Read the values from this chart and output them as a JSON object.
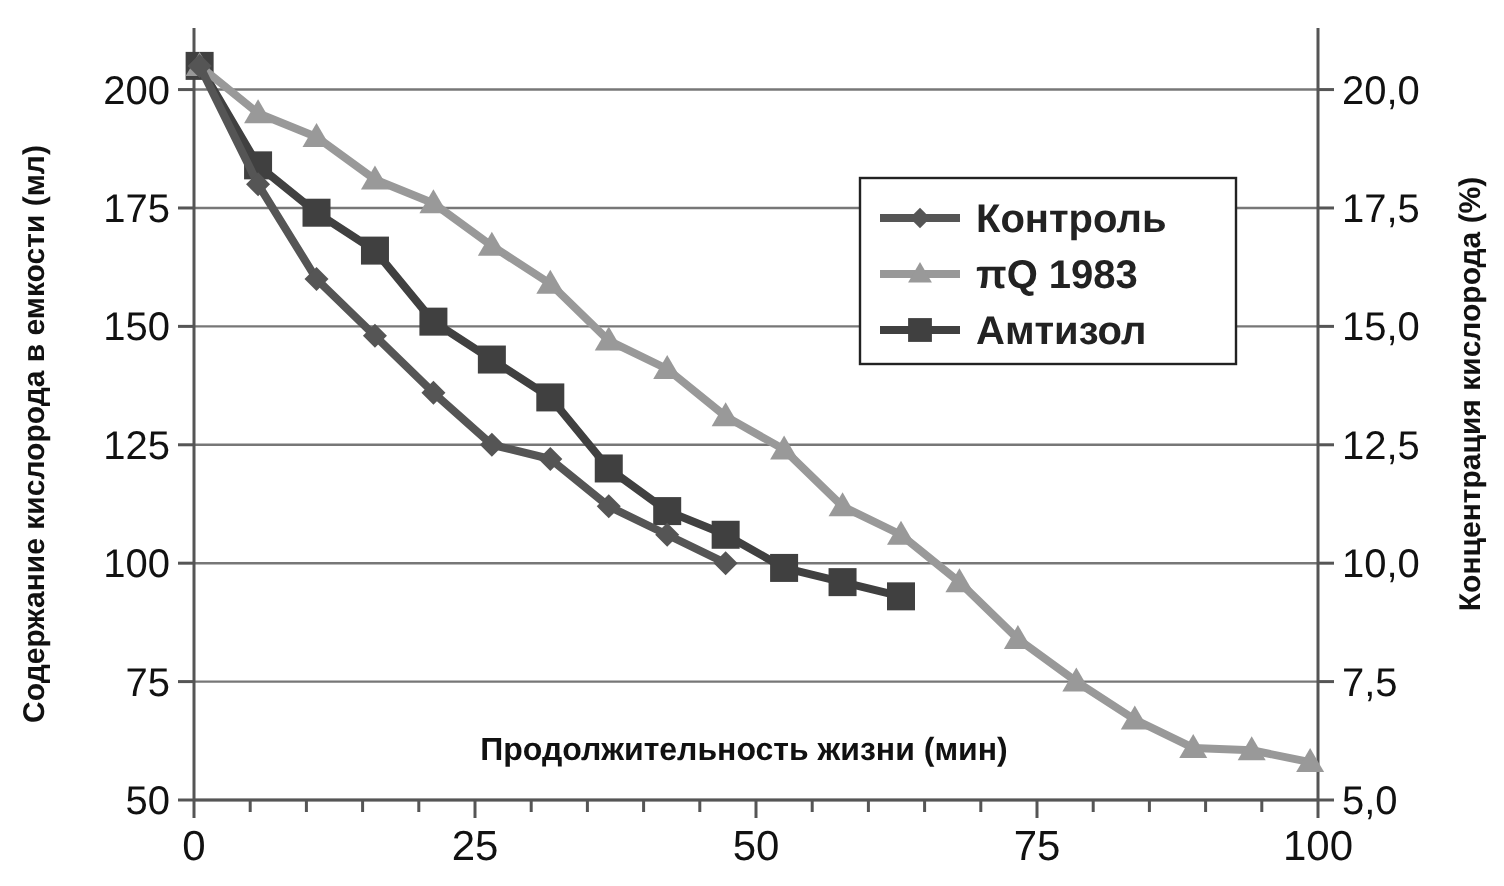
{
  "chart_data": {
    "type": "line",
    "xlabel": "Продолжительность жизни (мин)",
    "ylabel": "Содержание кислорода в емкости (мл)",
    "y2label": "Концентрация кислорода (%)",
    "xlim": [
      0,
      100
    ],
    "xticks": [
      0,
      {
        "value": 5,
        "label": null
      },
      {
        "value": 10,
        "label": null
      },
      {
        "value": 15,
        "label": null
      },
      {
        "value": 20,
        "label": null
      },
      25,
      {
        "value": 30,
        "label": null
      },
      {
        "value": 35,
        "label": null
      },
      {
        "value": 40,
        "label": null
      },
      {
        "value": 45,
        "label": null
      },
      50,
      {
        "value": 55,
        "label": null
      },
      {
        "value": 60,
        "label": null
      },
      {
        "value": 65,
        "label": null
      },
      {
        "value": 70,
        "label": null
      },
      75,
      {
        "value": 80,
        "label": null
      },
      {
        "value": 85,
        "label": null
      },
      {
        "value": 90,
        "label": null
      },
      {
        "value": 95,
        "label": null
      },
      100
    ],
    "ylim": [
      50,
      213
    ],
    "yticks": [
      50,
      75,
      100,
      125,
      150,
      175,
      200
    ],
    "y2lim": [
      5,
      21.3
    ],
    "y2ticks": [
      {
        "value": 5,
        "label": "5,0"
      },
      {
        "value": 7.5,
        "label": "7,5"
      },
      {
        "value": 10,
        "label": "10,0"
      },
      {
        "value": 12.5,
        "label": "12,5"
      },
      {
        "value": 15,
        "label": "15,0"
      },
      {
        "value": 17.5,
        "label": "17,5"
      },
      {
        "value": 20,
        "label": "20,0"
      }
    ],
    "grid": "y",
    "legend": "top right",
    "series": [
      {
        "name": "Контроль",
        "color": "#555555",
        "marker": "diamond",
        "x": [
          0.5,
          5.7,
          10.9,
          16.1,
          21.3,
          26.5,
          31.7,
          36.9,
          42.1,
          47.3
        ],
        "values": [
          205,
          180,
          160,
          148,
          136,
          125,
          122,
          112,
          106,
          100
        ]
      },
      {
        "name": "πQ 1983",
        "color": "#999999",
        "marker": "triangle",
        "x": [
          0.5,
          5.7,
          10.9,
          16.1,
          21.3,
          26.5,
          31.7,
          36.9,
          42.1,
          47.3,
          52.5,
          57.7,
          62.9,
          68.1,
          73.3,
          78.5,
          83.7,
          88.9,
          94.1,
          99.3
        ],
        "values": [
          205,
          195,
          190,
          181,
          176,
          167,
          159,
          147,
          141,
          131,
          124,
          112,
          106,
          96,
          84,
          75,
          67,
          61,
          60.5,
          58
        ]
      },
      {
        "name": "Амтизол",
        "color": "#404040",
        "marker": "square",
        "x": [
          0.5,
          5.7,
          10.9,
          16.1,
          21.3,
          26.5,
          31.7,
          36.9,
          42.1,
          47.3,
          52.5,
          57.7,
          62.9
        ],
        "values": [
          205,
          184,
          174,
          166,
          151,
          143,
          135,
          120,
          111,
          106,
          99,
          96,
          93
        ]
      }
    ]
  }
}
